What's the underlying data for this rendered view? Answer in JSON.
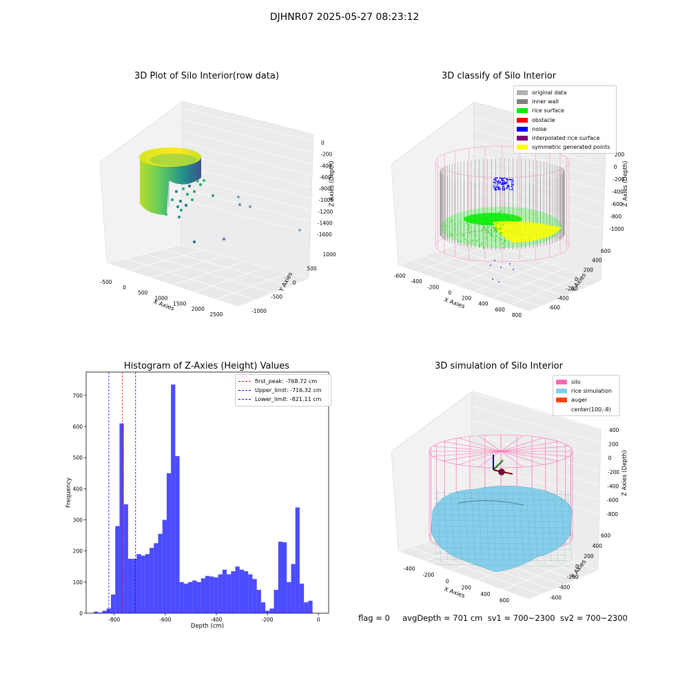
{
  "figure": {
    "suptitle": "DJHNR07 2025-05-27 08:23:12",
    "footer": "flag = 0     avgDepth = 701 cm  sv1 = 700~2300  sv2 = 700~2300"
  },
  "panel1": {
    "title": "3D Plot of Silo Interior(row data)",
    "xlabel": "X Axies",
    "ylabel": "Y Axies",
    "zlabel": "Z Axies (Depth)",
    "xticks": [
      "-500",
      "0",
      "500",
      "1000",
      "1500",
      "2000",
      "2500"
    ],
    "yticks": [
      "-1000",
      "-500",
      "0",
      "500",
      "1000"
    ],
    "zticks": [
      "0",
      "-200",
      "-400",
      "-600",
      "-800",
      "-1000",
      "-1200",
      "-1400",
      "-1600"
    ]
  },
  "panel2": {
    "title": "3D classify of Silo Interior",
    "xlabel": "X Axies",
    "ylabel": "Y Axies",
    "zlabel": "Z Axies (Depth)",
    "xticks": [
      "-600",
      "-400",
      "-200",
      "0",
      "200",
      "400",
      "600",
      "800"
    ],
    "yticks": [
      "-600",
      "-400",
      "-200",
      "0",
      "200",
      "400",
      "600"
    ],
    "zticks": [
      "200",
      "0",
      "-200",
      "-400",
      "-600",
      "-800",
      "-1000"
    ],
    "legend": [
      {
        "label": "original data",
        "color": "#b0b0b0"
      },
      {
        "label": "inner wall",
        "color": "#808080"
      },
      {
        "label": "rice surface",
        "color": "#00ee00"
      },
      {
        "label": "obstacle",
        "color": "#ff0000"
      },
      {
        "label": "noise",
        "color": "#0000ff"
      },
      {
        "label": "interpolated rice surface",
        "color": "#800080"
      },
      {
        "label": "symmetric generated points",
        "color": "#ffff00"
      }
    ]
  },
  "panel4": {
    "title": "3D simulation of Silo Interior",
    "xlabel": "X Axies",
    "ylabel": "Y Axies",
    "zlabel": "Z Axies (Depth)",
    "xticks": [
      "-400",
      "-200",
      "0",
      "200",
      "400",
      "600"
    ],
    "yticks": [
      "-600",
      "-400",
      "-200",
      "0",
      "200",
      "400",
      "600"
    ],
    "zticks": [
      "400",
      "200",
      "0",
      "-200",
      "-400",
      "-600",
      "-800"
    ],
    "legend": [
      {
        "label": "silo",
        "color": "#ff69b4"
      },
      {
        "label": "rice simulation",
        "color": "#87ceeb"
      },
      {
        "label": "auger",
        "color": "#ff4500"
      },
      {
        "label": "center(100,-8)",
        "color": ""
      }
    ]
  },
  "chart_data": {
    "type": "bar",
    "title": "Histogram of Z-Axies (Height) Values",
    "xlabel": "Depth (cm)",
    "ylabel": "Frequency",
    "xlim": [
      -910,
      40
    ],
    "ylim": [
      0,
      775
    ],
    "xticks": [
      -800,
      -600,
      -400,
      -200,
      0
    ],
    "yticks": [
      0,
      100,
      200,
      300,
      400,
      500,
      600,
      700
    ],
    "color": "#0000ff",
    "bin_start": -880,
    "bin_width": 16.8,
    "values": [
      5,
      2,
      8,
      15,
      60,
      280,
      610,
      350,
      175,
      175,
      190,
      185,
      190,
      210,
      225,
      255,
      300,
      450,
      735,
      505,
      100,
      95,
      100,
      105,
      100,
      112,
      120,
      118,
      115,
      125,
      140,
      125,
      135,
      150,
      140,
      135,
      125,
      110,
      75,
      35,
      8,
      15,
      75,
      230,
      228,
      100,
      158,
      340,
      95,
      35,
      40
    ],
    "lines": [
      {
        "label": "first_peak: -768.72 cm",
        "x": -768.72,
        "color": "#ff0000"
      },
      {
        "label": "Upper_limit: -716.32 cm",
        "x": -716.32,
        "color": "#0000ff"
      },
      {
        "label": "Lower_limit: -821.11 cm",
        "x": -821.11,
        "color": "#0000ff"
      }
    ]
  }
}
